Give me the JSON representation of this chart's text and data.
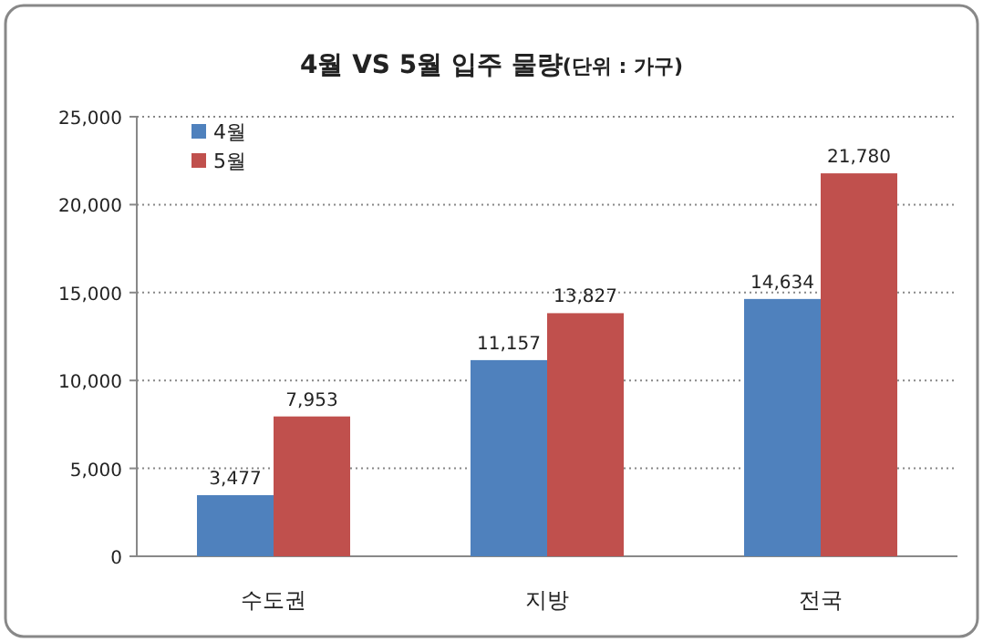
{
  "chart_data": {
    "type": "bar",
    "title": "4월 VS 5월 입주 물량",
    "subtitle": "(단위 : 가구)",
    "categories": [
      "수도권",
      "지방",
      "전국"
    ],
    "series": [
      {
        "name": "4월",
        "color": "#4f81bd",
        "values": [
          3477,
          11157,
          14634
        ],
        "value_labels": [
          "3,477",
          "11,157",
          "14,634"
        ]
      },
      {
        "name": "5월",
        "color": "#c0504d",
        "values": [
          7953,
          13827,
          21780
        ],
        "value_labels": [
          "7,953",
          "13,827",
          "21,780"
        ]
      }
    ],
    "ylim": [
      0,
      25000
    ],
    "yticks": [
      {
        "value": 0,
        "label": "0"
      },
      {
        "value": 5000,
        "label": "5,000"
      },
      {
        "value": 10000,
        "label": "10,000"
      },
      {
        "value": 15000,
        "label": "15,000"
      },
      {
        "value": 20000,
        "label": "20,000"
      },
      {
        "value": 25000,
        "label": "25,000"
      }
    ],
    "grid": "y",
    "legend": "top left"
  }
}
